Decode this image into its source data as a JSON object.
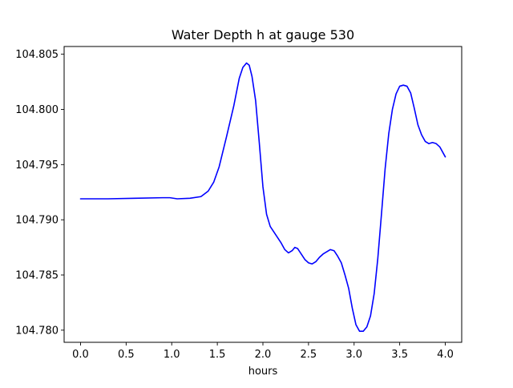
{
  "chart_data": {
    "type": "line",
    "title": "Water Depth h at gauge 530",
    "xlabel": "hours",
    "ylabel": "",
    "xlim": [
      -0.18,
      4.18
    ],
    "ylim": [
      104.7789,
      104.8057
    ],
    "x_ticks": [
      0.0,
      0.5,
      1.0,
      1.5,
      2.0,
      2.5,
      3.0,
      3.5,
      4.0
    ],
    "x_tick_labels": [
      "0.0",
      "0.5",
      "1.0",
      "1.5",
      "2.0",
      "2.5",
      "3.0",
      "3.5",
      "4.0"
    ],
    "y_ticks": [
      104.78,
      104.785,
      104.79,
      104.795,
      104.8,
      104.805
    ],
    "y_tick_labels": [
      "104.780",
      "104.785",
      "104.790",
      "104.795",
      "104.800",
      "104.805"
    ],
    "grid": false,
    "series": [
      {
        "color": "#0000ff",
        "x": [
          0.0,
          0.3,
          0.6,
          0.9,
          0.98,
          1.06,
          1.2,
          1.32,
          1.4,
          1.46,
          1.52,
          1.6,
          1.68,
          1.74,
          1.78,
          1.82,
          1.85,
          1.88,
          1.92,
          1.96,
          2.0,
          2.04,
          2.08,
          2.12,
          2.16,
          2.2,
          2.24,
          2.28,
          2.32,
          2.35,
          2.38,
          2.42,
          2.46,
          2.5,
          2.54,
          2.58,
          2.62,
          2.66,
          2.7,
          2.74,
          2.78,
          2.82,
          2.86,
          2.9,
          2.94,
          2.98,
          3.02,
          3.06,
          3.1,
          3.14,
          3.18,
          3.22,
          3.26,
          3.3,
          3.34,
          3.38,
          3.42,
          3.46,
          3.5,
          3.54,
          3.58,
          3.62,
          3.66,
          3.7,
          3.74,
          3.78,
          3.82,
          3.86,
          3.9,
          3.94,
          3.98,
          4.0
        ],
        "y": [
          104.7919,
          104.7919,
          104.79195,
          104.792,
          104.792,
          104.7919,
          104.79195,
          104.7921,
          104.7926,
          104.7934,
          104.7948,
          104.7975,
          104.8003,
          104.8028,
          104.8038,
          104.8042,
          104.804,
          104.803,
          104.8008,
          104.797,
          104.793,
          104.7905,
          104.7894,
          104.7889,
          104.7884,
          104.7879,
          104.7873,
          104.787,
          104.7872,
          104.7875,
          104.7874,
          104.7869,
          104.7864,
          104.7861,
          104.786,
          104.7862,
          104.7866,
          104.7869,
          104.7871,
          104.7873,
          104.7872,
          104.7867,
          104.7861,
          104.785,
          104.7838,
          104.782,
          104.7805,
          104.7799,
          104.7799,
          104.7803,
          104.7813,
          104.7833,
          104.7865,
          104.7905,
          104.7946,
          104.7978,
          104.8,
          104.8014,
          104.8021,
          104.8022,
          104.8021,
          104.8015,
          104.8001,
          104.7986,
          104.7977,
          104.7971,
          104.7969,
          104.797,
          104.7969,
          104.7966,
          104.796,
          104.7957
        ]
      }
    ]
  }
}
